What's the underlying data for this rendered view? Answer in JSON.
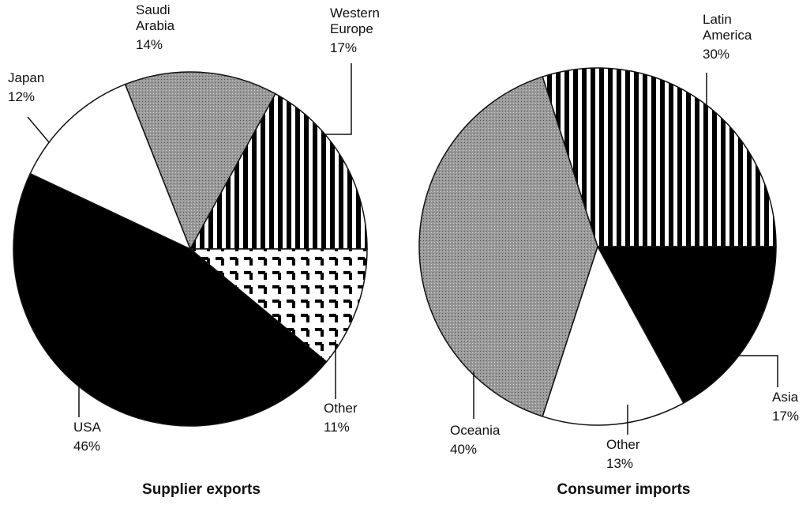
{
  "chart_data": [
    {
      "type": "pie",
      "title": "Supplier exports",
      "categories": [
        "Saudi Arabia",
        "Western Europe",
        "Other",
        "USA",
        "Japan"
      ],
      "values": [
        14,
        17,
        11,
        46,
        12
      ],
      "value_labels": [
        "14%",
        "17%",
        "11%",
        "46%",
        "12%"
      ],
      "patterns": [
        "gray",
        "stripes",
        "checker",
        "black",
        "white"
      ]
    },
    {
      "type": "pie",
      "title": "Consumer imports",
      "categories": [
        "Latin America",
        "Asia",
        "Other",
        "Oceania"
      ],
      "values": [
        30,
        17,
        13,
        40
      ],
      "value_labels": [
        "30%",
        "17%",
        "13%",
        "40%"
      ],
      "patterns": [
        "stripes",
        "black",
        "white",
        "gray"
      ]
    }
  ]
}
